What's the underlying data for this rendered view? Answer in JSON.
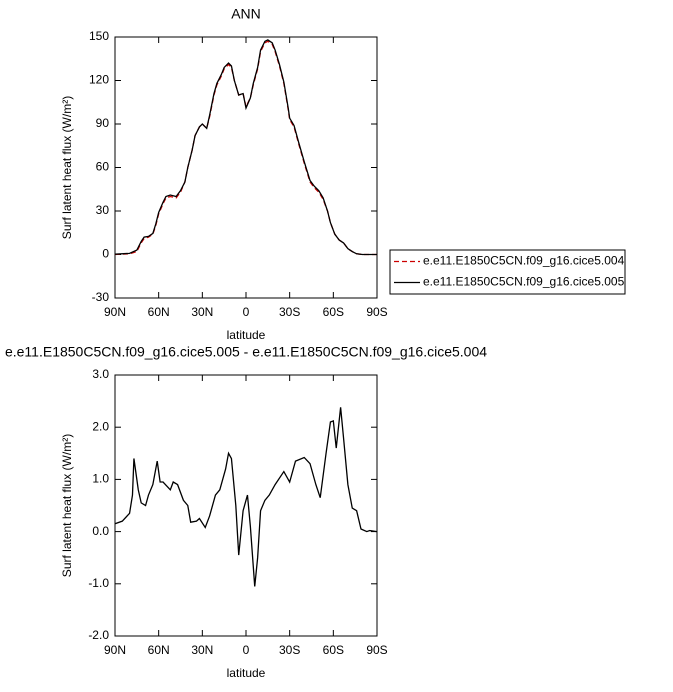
{
  "chart_data": [
    {
      "type": "line",
      "title": "ANN",
      "x_label": "latitude",
      "y_label": "Surf latent heat flux (W/m²)",
      "x": [
        90,
        80,
        75,
        72,
        70,
        67,
        64,
        62,
        60,
        57,
        55,
        52,
        48,
        45,
        42,
        40,
        37,
        35,
        32,
        30,
        27,
        25,
        22,
        20,
        17,
        15,
        12,
        10,
        8,
        5,
        2,
        0,
        -3,
        -5,
        -8,
        -10,
        -13,
        -15,
        -18,
        -20,
        -23,
        -26,
        -29,
        -30,
        -33,
        -36,
        -40,
        -44,
        -47,
        -50,
        -53,
        -56,
        -58,
        -61,
        -64,
        -67,
        -70,
        -73,
        -76,
        -80,
        -90
      ],
      "series": [
        {
          "name": "e.e11.E1850C5CN.f09_g16.cice5.004",
          "color": "#cc0000",
          "dashed": true,
          "values": [
            0,
            0.5,
            2,
            8,
            11,
            12,
            14,
            20,
            28,
            35,
            39,
            40,
            39,
            43,
            50,
            60,
            72,
            82,
            88,
            90,
            87,
            95,
            110,
            117,
            123,
            128,
            131,
            129,
            120,
            110,
            111,
            102,
            108,
            117,
            128,
            140,
            146,
            147,
            145,
            140,
            130,
            118,
            100,
            93,
            88,
            77,
            63,
            50,
            46,
            43,
            38,
            30,
            22,
            14,
            10,
            8,
            4,
            2,
            0.5,
            0,
            0
          ]
        },
        {
          "name": "e.e11.E1850C5CN.f09_g16.cice5.005",
          "color": "#000000",
          "dashed": false,
          "values": [
            0.2,
            0.8,
            3,
            9,
            12,
            12.5,
            14.5,
            21,
            29,
            36,
            40,
            41,
            40,
            44,
            50,
            60,
            72,
            82,
            88,
            90,
            87,
            96,
            111,
            118,
            124,
            129,
            132,
            130,
            120,
            110,
            111,
            101,
            108,
            118,
            129,
            141,
            147,
            148,
            146,
            141,
            131,
            119,
            101,
            94,
            89,
            78,
            64,
            51,
            47,
            44,
            39,
            30,
            22,
            14,
            10,
            8,
            4,
            2,
            0.5,
            0,
            0
          ]
        }
      ],
      "xlim": [
        90,
        -90
      ],
      "xticks": [
        {
          "value": 90,
          "label": "90N"
        },
        {
          "value": 60,
          "label": "60N"
        },
        {
          "value": 30,
          "label": "30N"
        },
        0,
        {
          "value": -30,
          "label": "30S"
        },
        {
          "value": -60,
          "label": "60S"
        },
        {
          "value": -90,
          "label": "90S"
        }
      ],
      "ylim": [
        -30,
        150
      ],
      "yticks": [
        -30,
        0,
        30,
        60,
        90,
        120,
        150
      ],
      "legend_position": "right"
    },
    {
      "type": "line",
      "title": "e.e11.E1850C5CN.f09_g16.cice5.005 - e.e11.E1850C5CN.f09_g16.cice5.004",
      "x_label": "latitude",
      "y_label": "Surf latent heat flux (W/m²)",
      "x": [
        90,
        85,
        80,
        78,
        77,
        74,
        72,
        69,
        67,
        64,
        61,
        59,
        57,
        52,
        50,
        47,
        43,
        40,
        38,
        34,
        32,
        28,
        25,
        21,
        18,
        14,
        12,
        10,
        7,
        5,
        2,
        -1,
        -3,
        -6,
        -8,
        -10,
        -13,
        -16,
        -20,
        -26,
        -30,
        -34,
        -40,
        -44,
        -48,
        -51,
        -55,
        -58,
        -60,
        -62,
        -65,
        -67,
        -70,
        -73,
        -76,
        -79,
        -83,
        -85,
        -90
      ],
      "values": [
        0.15,
        0.2,
        0.35,
        0.7,
        1.4,
        0.8,
        0.55,
        0.5,
        0.7,
        0.9,
        1.35,
        0.95,
        0.95,
        0.8,
        0.95,
        0.9,
        0.6,
        0.5,
        0.18,
        0.2,
        0.25,
        0.08,
        0.3,
        0.7,
        0.8,
        1.2,
        1.5,
        1.4,
        0.5,
        -0.45,
        0.4,
        0.7,
        0.1,
        -1.05,
        -0.5,
        0.4,
        0.6,
        0.7,
        0.9,
        1.15,
        0.95,
        1.35,
        1.42,
        1.3,
        0.9,
        0.65,
        1.5,
        2.1,
        2.12,
        1.6,
        2.38,
        1.8,
        0.9,
        0.45,
        0.4,
        0.05,
        0,
        0.02,
        0
      ],
      "color": "#000000",
      "xlim": [
        90,
        -90
      ],
      "xticks": [
        {
          "value": 90,
          "label": "90N"
        },
        {
          "value": 60,
          "label": "60N"
        },
        {
          "value": 30,
          "label": "30N"
        },
        0,
        {
          "value": -30,
          "label": "30S"
        },
        {
          "value": -60,
          "label": "60S"
        },
        {
          "value": -90,
          "label": "90S"
        }
      ],
      "ylim": [
        -2,
        3
      ],
      "yticks": [
        {
          "value": -2,
          "label": "-2.0"
        },
        {
          "value": -1,
          "label": "-1.0"
        },
        {
          "value": 0,
          "label": "0.0"
        },
        {
          "value": 1,
          "label": "1.0"
        },
        {
          "value": 2,
          "label": "2.0"
        },
        {
          "value": 3,
          "label": "3.0"
        }
      ]
    }
  ]
}
